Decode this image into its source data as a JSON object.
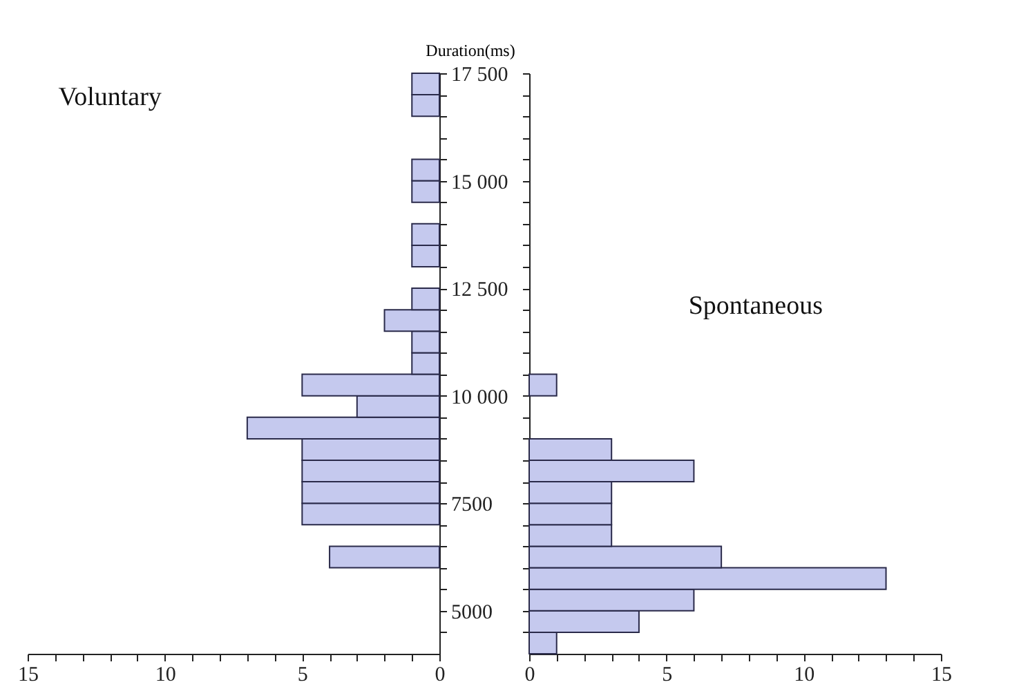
{
  "chart_data": [
    {
      "type": "histogram",
      "orientation": "horizontal",
      "ylabel": "Duration(ms)",
      "bins": [
        4000,
        4500,
        5000,
        5500,
        6000,
        6500,
        7000,
        7500,
        8000,
        8500,
        9000,
        9500,
        10000,
        10500,
        11000,
        11500,
        12000,
        12500,
        13000,
        13500,
        14000,
        14500,
        15000,
        15500,
        16000,
        16500,
        17000,
        17500
      ],
      "series": [
        {
          "name": "Voluntary",
          "color": "#c5c9ee",
          "values": [
            0,
            0,
            0,
            0,
            4,
            0,
            5,
            5,
            5,
            5,
            7,
            3,
            5,
            1,
            1,
            2,
            1,
            0,
            1,
            1,
            0,
            1,
            1,
            0,
            0,
            1,
            1
          ]
        }
      ],
      "xlim": [
        15,
        0
      ],
      "xticks": [
        15,
        {
          "value": 14,
          "label": null
        },
        {
          "value": 13,
          "label": null
        },
        {
          "value": 12,
          "label": null
        },
        {
          "value": 11,
          "label": null
        },
        10,
        {
          "value": 9,
          "label": null
        },
        {
          "value": 8,
          "label": null
        },
        {
          "value": 7,
          "label": null
        },
        {
          "value": 6,
          "label": null
        },
        5,
        {
          "value": 4,
          "label": null
        },
        {
          "value": 3,
          "label": null
        },
        {
          "value": 2,
          "label": null
        },
        {
          "value": 1,
          "label": null
        },
        0
      ],
      "ylim": [
        4000,
        17500
      ],
      "yticks": [
        {
          "value": 4500,
          "label": null
        },
        {
          "value": 5000,
          "label": "5000"
        },
        {
          "value": 5500,
          "label": null
        },
        {
          "value": 6000,
          "label": null
        },
        {
          "value": 6500,
          "label": null
        },
        {
          "value": 7000,
          "label": null
        },
        {
          "value": 7500,
          "label": "7500"
        },
        {
          "value": 8000,
          "label": null
        },
        {
          "value": 8500,
          "label": null
        },
        {
          "value": 9000,
          "label": null
        },
        {
          "value": 9500,
          "label": null
        },
        {
          "value": 10000,
          "label": "10 000"
        },
        {
          "value": 10500,
          "label": null
        },
        {
          "value": 11000,
          "label": null
        },
        {
          "value": 11500,
          "label": null
        },
        {
          "value": 12000,
          "label": null
        },
        {
          "value": 12500,
          "label": "12 500"
        },
        {
          "value": 13000,
          "label": null
        },
        {
          "value": 13500,
          "label": null
        },
        {
          "value": 14000,
          "label": null
        },
        {
          "value": 14500,
          "label": null
        },
        {
          "value": 15000,
          "label": "15 000"
        },
        {
          "value": 15500,
          "label": null
        },
        {
          "value": 16000,
          "label": null
        },
        {
          "value": 16500,
          "label": null
        },
        {
          "value": 17000,
          "label": null
        },
        {
          "value": 17500,
          "label": "17 500"
        }
      ],
      "grid": false,
      "legend": false
    },
    {
      "type": "histogram",
      "orientation": "horizontal",
      "bins": [
        4000,
        4500,
        5000,
        5500,
        6000,
        6500,
        7000,
        7500,
        8000,
        8500,
        9000,
        9500,
        10000,
        10500,
        11000,
        11500,
        12000,
        12500,
        13000,
        13500,
        14000,
        14500,
        15000,
        15500,
        16000,
        16500,
        17000,
        17500
      ],
      "series": [
        {
          "name": "Spontaneous",
          "color": "#c5c9ee",
          "values": [
            1,
            4,
            6,
            13,
            7,
            3,
            3,
            3,
            6,
            3,
            0,
            0,
            1,
            0,
            0,
            0,
            0,
            0,
            0,
            0,
            0,
            0,
            0,
            0,
            0,
            0,
            0
          ]
        }
      ],
      "xlim": [
        0,
        15
      ],
      "xticks": [
        0,
        {
          "value": 1,
          "label": null
        },
        {
          "value": 2,
          "label": null
        },
        {
          "value": 3,
          "label": null
        },
        {
          "value": 4,
          "label": null
        },
        5,
        {
          "value": 6,
          "label": null
        },
        {
          "value": 7,
          "label": null
        },
        {
          "value": 8,
          "label": null
        },
        {
          "value": 9,
          "label": null
        },
        10,
        {
          "value": 11,
          "label": null
        },
        {
          "value": 12,
          "label": null
        },
        {
          "value": 13,
          "label": null
        },
        {
          "value": 14,
          "label": null
        },
        15
      ],
      "ylim": [
        4000,
        17500
      ],
      "yticks": [
        {
          "value": 4500,
          "label": null
        },
        {
          "value": 5000,
          "label": null
        },
        {
          "value": 5500,
          "label": null
        },
        {
          "value": 6000,
          "label": null
        },
        {
          "value": 6500,
          "label": null
        },
        {
          "value": 7000,
          "label": null
        },
        {
          "value": 7500,
          "label": null
        },
        {
          "value": 8000,
          "label": null
        },
        {
          "value": 8500,
          "label": null
        },
        {
          "value": 9000,
          "label": null
        },
        {
          "value": 9500,
          "label": null
        },
        {
          "value": 10000,
          "label": null
        },
        {
          "value": 10500,
          "label": null
        },
        {
          "value": 11000,
          "label": null
        },
        {
          "value": 11500,
          "label": null
        },
        {
          "value": 12000,
          "label": null
        },
        {
          "value": 12500,
          "label": null
        },
        {
          "value": 13000,
          "label": null
        },
        {
          "value": 13500,
          "label": null
        },
        {
          "value": 14000,
          "label": null
        },
        {
          "value": 14500,
          "label": null
        },
        {
          "value": 15000,
          "label": null
        },
        {
          "value": 15500,
          "label": null
        },
        {
          "value": 16000,
          "label": null
        },
        {
          "value": 16500,
          "label": null
        },
        {
          "value": 17000,
          "label": null
        },
        {
          "value": 17500,
          "label": null
        }
      ],
      "tick_labels": "x",
      "grid": false,
      "legend": false
    }
  ]
}
